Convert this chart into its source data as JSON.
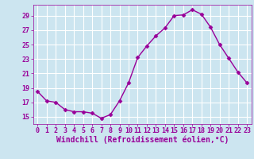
{
  "x": [
    0,
    1,
    2,
    3,
    4,
    5,
    6,
    7,
    8,
    9,
    10,
    11,
    12,
    13,
    14,
    15,
    16,
    17,
    18,
    19,
    20,
    21,
    22,
    23
  ],
  "y": [
    18.5,
    17.2,
    17.0,
    16.0,
    15.7,
    15.7,
    15.5,
    14.8,
    15.3,
    17.2,
    19.7,
    23.2,
    24.8,
    26.2,
    27.3,
    29.0,
    29.1,
    29.8,
    29.2,
    27.4,
    25.0,
    23.1,
    21.2,
    19.7
  ],
  "line_color": "#990099",
  "marker": "D",
  "markersize": 2.5,
  "linewidth": 1.0,
  "bg_color": "#cce5f0",
  "grid_color": "#ffffff",
  "tick_color": "#990099",
  "label_color": "#990099",
  "xlabel": "Windchill (Refroidissement éolien,°C)",
  "xlabel_fontsize": 7.0,
  "tick_fontsize": 6.0,
  "ytick_start": 15,
  "ytick_end": 29,
  "ytick_step": 2,
  "ylim": [
    14.0,
    30.5
  ],
  "xlim": [
    -0.5,
    23.5
  ],
  "xtick_labels": [
    "0",
    "1",
    "2",
    "3",
    "4",
    "5",
    "6",
    "7",
    "8",
    "9",
    "10",
    "11",
    "12",
    "13",
    "14",
    "15",
    "16",
    "17",
    "18",
    "19",
    "20",
    "21",
    "22",
    "23"
  ]
}
